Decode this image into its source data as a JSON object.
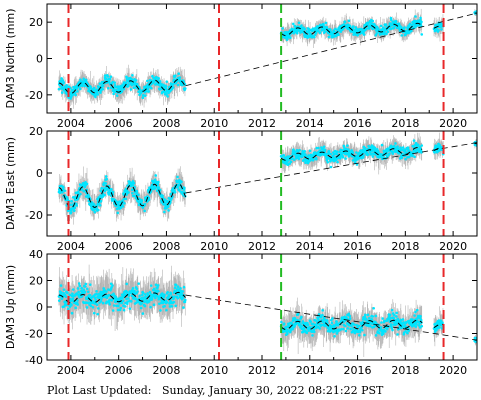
{
  "footer": {
    "label": "Plot Last Updated:",
    "timestamp": "Sunday, January 30, 2022 08:21:22 PST"
  },
  "chart_data": [
    {
      "type": "scatter",
      "ylabel": "DAM3 North (mm)",
      "xlim": [
        2003.0,
        2021.0
      ],
      "ylim": [
        -30,
        30
      ],
      "yticks": [
        -20,
        0,
        20
      ],
      "xticks": [
        2004,
        2006,
        2008,
        2010,
        2012,
        2014,
        2016,
        2018,
        2020
      ],
      "segments": [
        {
          "start": 2003.5,
          "end": 2008.8,
          "offset": -16.5,
          "trend": 0.4,
          "amplitude": 3,
          "scatter": 3.5,
          "ref_at": 2003.5
        },
        {
          "start": 2012.8,
          "end": 2018.7,
          "offset": 14.5,
          "trend": 0.5,
          "amplitude": 2,
          "scatter": 3.0,
          "ref_at": 2012.8
        },
        {
          "start": 2019.2,
          "end": 2019.6,
          "offset": 17.0,
          "trend": 0.0,
          "amplitude": 1,
          "scatter": 3.0,
          "ref_at": 2019.2
        },
        {
          "start": 2020.9,
          "end": 2021.0,
          "offset": 25.0,
          "trend": 0.0,
          "amplitude": 0,
          "scatter": 1.0,
          "ref_at": 2020.9
        }
      ],
      "fit_gap_line": [
        [
          2008.8,
          -15.0
        ],
        [
          2021.0,
          25.0
        ]
      ],
      "vlines": [
        {
          "x": 2003.9,
          "color": "#e8282a"
        },
        {
          "x": 2010.2,
          "color": "#e8282a"
        },
        {
          "x": 2012.8,
          "color": "#22bb22"
        },
        {
          "x": 2019.6,
          "color": "#e8282a"
        }
      ]
    },
    {
      "type": "scatter",
      "ylabel": "DAM3 East (mm)",
      "xlim": [
        2003.0,
        2021.0
      ],
      "ylim": [
        -30,
        20
      ],
      "yticks": [
        -20,
        0,
        20
      ],
      "xticks": [
        2004,
        2006,
        2008,
        2010,
        2012,
        2014,
        2016,
        2018,
        2020
      ],
      "segments": [
        {
          "start": 2003.5,
          "end": 2008.8,
          "offset": -12.0,
          "trend": 0.4,
          "amplitude": 5,
          "scatter": 3.5,
          "ref_at": 2003.5
        },
        {
          "start": 2012.8,
          "end": 2018.7,
          "offset": 7.5,
          "trend": 0.55,
          "amplitude": 1.5,
          "scatter": 3.0,
          "ref_at": 2012.8
        },
        {
          "start": 2019.2,
          "end": 2019.6,
          "offset": 11.0,
          "trend": 0.0,
          "amplitude": 1,
          "scatter": 2.5,
          "ref_at": 2019.2
        },
        {
          "start": 2020.9,
          "end": 2021.0,
          "offset": 14.0,
          "trend": 0.0,
          "amplitude": 0,
          "scatter": 1.0,
          "ref_at": 2020.9
        }
      ],
      "fit_gap_line": [
        [
          2008.8,
          -9.5
        ],
        [
          2021.0,
          14.5
        ]
      ],
      "vlines": [
        {
          "x": 2003.9,
          "color": "#e8282a"
        },
        {
          "x": 2010.2,
          "color": "#e8282a"
        },
        {
          "x": 2012.8,
          "color": "#22bb22"
        },
        {
          "x": 2019.6,
          "color": "#e8282a"
        }
      ]
    },
    {
      "type": "scatter",
      "ylabel": "DAM3 Up (mm)",
      "xlim": [
        2003.0,
        2021.0
      ],
      "ylim": [
        -40,
        40
      ],
      "yticks": [
        -40,
        -20,
        0,
        20,
        40
      ],
      "xticks": [
        2004,
        2006,
        2008,
        2010,
        2012,
        2014,
        2016,
        2018,
        2020
      ],
      "segments": [
        {
          "start": 2003.5,
          "end": 2008.8,
          "offset": 6.0,
          "trend": 0.4,
          "amplitude": 3,
          "scatter": 9.0,
          "ref_at": 2003.5
        },
        {
          "start": 2012.8,
          "end": 2018.7,
          "offset": -14.0,
          "trend": 0.2,
          "amplitude": 3,
          "scatter": 7.0,
          "ref_at": 2012.8
        },
        {
          "start": 2019.2,
          "end": 2019.6,
          "offset": -15.0,
          "trend": 0.0,
          "amplitude": 2,
          "scatter": 5.0,
          "ref_at": 2019.2
        },
        {
          "start": 2020.9,
          "end": 2021.0,
          "offset": -25.0,
          "trend": 0.0,
          "amplitude": 0,
          "scatter": 2.0,
          "ref_at": 2020.9
        }
      ],
      "fit_gap_line": [
        [
          2008.8,
          9.0
        ],
        [
          2021.0,
          -25.0
        ]
      ],
      "vlines": [
        {
          "x": 2003.9,
          "color": "#e8282a"
        },
        {
          "x": 2010.2,
          "color": "#e8282a"
        },
        {
          "x": 2012.8,
          "color": "#22bb22"
        },
        {
          "x": 2019.6,
          "color": "#e8282a"
        }
      ]
    }
  ],
  "colors": {
    "point": "#00e5ff",
    "errorbar": "#b4b4b4",
    "fit": "#000000"
  }
}
